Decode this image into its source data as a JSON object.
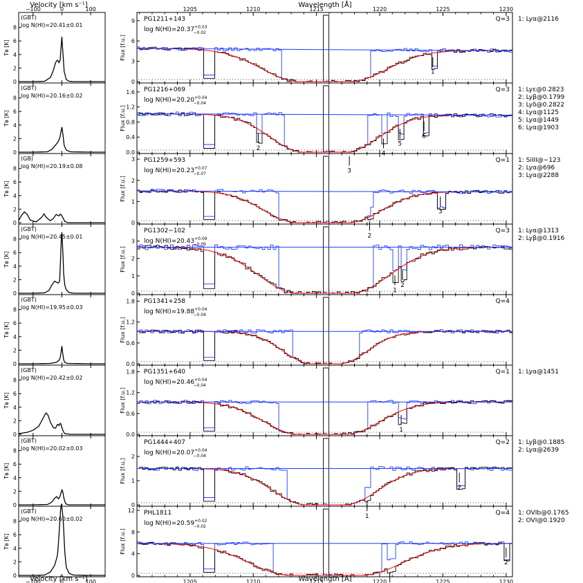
{
  "chart_data": {
    "type": "line",
    "left_column": {
      "xlabel": "Velocity [km s⁻¹]",
      "ylabel": "Tʙ [K]",
      "xlim": [
        -150,
        150
      ],
      "ylim": [
        0,
        10
      ],
      "x_ticks": [
        "−100",
        "0",
        "100"
      ],
      "y_ticks": [
        "0",
        "2",
        "4",
        "6",
        "8"
      ]
    },
    "right_column": {
      "xlabel": "Wavelength [Å]",
      "ylabel": "Flux [f.u.]",
      "xlim": [
        1200.8,
        1230.5
      ],
      "x_ticks": [
        "1205",
        "1210",
        "1215",
        "1220",
        "1225",
        "1230"
      ]
    },
    "rows": [
      {
        "telescope": "(GBT)",
        "nhi_21cm": "log N(HI)=20.41±0.01",
        "hi_profile": {
          "v": [
            -100,
            -60,
            -40,
            -30,
            -22,
            -15,
            -10,
            -6,
            -3,
            0,
            3,
            8,
            15,
            25,
            40,
            100
          ],
          "tb": [
            0,
            0.05,
            0.6,
            1.6,
            2.8,
            3.2,
            2.8,
            3.2,
            5.0,
            6.6,
            4.5,
            1.5,
            0.3,
            0.05,
            0,
            0
          ]
        },
        "target": "PG1211+143",
        "nhi_lya": "log N(HI)=20.37",
        "err_up": "+0.03",
        "err_dn": "−0.02",
        "quality": "Q=3",
        "yticks": [
          {
            "v": 0,
            "label": "0"
          },
          {
            "v": 3,
            "label": "3"
          },
          {
            "v": 6,
            "label": "6"
          },
          {
            "v": 9,
            "label": "9"
          }
        ],
        "ylim": [
          0,
          10
        ],
        "continuum": 4.9,
        "continuum_end": 4.55,
        "trough": [
          1213.7,
          1217.6
        ],
        "damping_scale": 18,
        "marks": [
          {
            "w": 1224.2,
            "label": "1"
          }
        ],
        "lines": [
          "1: Lyα@2116"
        ]
      },
      {
        "telescope": "(GBT)",
        "nhi_21cm": "log N(HI)=20.16±0.02",
        "hi_profile": {
          "v": [
            -100,
            -50,
            -35,
            -25,
            -15,
            -8,
            -3,
            0,
            3,
            8,
            15,
            30,
            100
          ],
          "tb": [
            0,
            0.05,
            0.4,
            0.9,
            1.4,
            2.0,
            3.0,
            3.7,
            2.8,
            1.0,
            0.3,
            0.05,
            0
          ]
        },
        "target": "PG1216+069",
        "nhi_lya": "log N(HI)=20.20",
        "err_up": "+0.04",
        "err_dn": "−0.04",
        "quality": "Q=3",
        "yticks": [
          {
            "v": 0,
            "label": "0.0"
          },
          {
            "v": 0.4,
            "label": "0.4"
          },
          {
            "v": 0.8,
            "label": "0.8"
          },
          {
            "v": 1.2,
            "label": "1.2"
          },
          {
            "v": 1.6,
            "label": "1.6"
          }
        ],
        "ylim": [
          0,
          1.8
        ],
        "continuum": 1.02,
        "continuum_end": 0.98,
        "trough": [
          1214.0,
          1217.3
        ],
        "damping_scale": 14,
        "marks": [
          {
            "w": 1210.4,
            "label": "2"
          },
          {
            "w": 1217.6,
            "label": "3"
          },
          {
            "w": 1220.3,
            "label": "4"
          },
          {
            "w": 1221.6,
            "label": "5"
          },
          {
            "w": 1223.5,
            "label": "6"
          }
        ],
        "lines": [
          "1: Lyε@0.2823",
          "2: Lyβ@0.1799",
          "3: Lyδ@0.2822",
          "4: Lyα@1125",
          "5: Lyα@1449",
          "6: Lyα@1903"
        ]
      },
      {
        "telescope": "(GB)",
        "nhi_21cm": "log N(HI)=20.19±0.08",
        "hi_profile": {
          "v": [
            -150,
            -140,
            -130,
            -120,
            -110,
            -90,
            -70,
            -62,
            -55,
            -40,
            -30,
            -20,
            -10,
            -5,
            0,
            10,
            20,
            100
          ],
          "tb": [
            0.3,
            1.1,
            1.6,
            1.2,
            0.4,
            0.1,
            0.8,
            1.3,
            0.8,
            0.3,
            0.6,
            1.2,
            1.0,
            1.3,
            1.0,
            0.2,
            0,
            0
          ]
        },
        "target": "PG1259+593",
        "nhi_lya": "log N(HI)=20.23",
        "err_up": "+0.07",
        "err_dn": "−0.07",
        "quality": "Q=1",
        "yticks": [
          {
            "v": 0,
            "label": "0"
          },
          {
            "v": 1,
            "label": "1"
          },
          {
            "v": 2,
            "label": "2"
          },
          {
            "v": 3,
            "label": "3"
          }
        ],
        "ylim": [
          0,
          3.2
        ],
        "continuum": 1.5,
        "continuum_end": 1.45,
        "trough": [
          1213.5,
          1217.5
        ],
        "damping_scale": 14,
        "marks": [
          {
            "w": 1219.2,
            "label": "2"
          },
          {
            "w": 1224.8,
            "label": "3"
          }
        ],
        "lines": [
          "1: SiIII@−123",
          "2: Lyα@696",
          "3: Lyα@2288"
        ]
      },
      {
        "telescope": "(GBT)",
        "nhi_21cm": "log N(HI)=20.45±0.01",
        "hi_profile": {
          "v": [
            -100,
            -60,
            -45,
            -35,
            -25,
            -18,
            -12,
            -8,
            -5,
            -2,
            0,
            3,
            6,
            10,
            15,
            25,
            40,
            100
          ],
          "tb": [
            0,
            0.05,
            0.4,
            1.2,
            1.8,
            1.6,
            1.5,
            1.8,
            4.5,
            8.0,
            9.0,
            6.5,
            3.0,
            1.2,
            0.5,
            0.1,
            0,
            0
          ]
        },
        "target": "PG1302−102",
        "nhi_lya": "log N(HI)=20.43",
        "err_up": "+0.09",
        "err_dn": "−0.09",
        "quality": "Q=3",
        "yticks": [
          {
            "v": 0,
            "label": "0"
          },
          {
            "v": 1,
            "label": "1"
          },
          {
            "v": 2,
            "label": "2"
          },
          {
            "v": 3,
            "label": "3"
          }
        ],
        "ylim": [
          0,
          3.9
        ],
        "continuum": 2.65,
        "continuum_end": 2.65,
        "trough": [
          1213.5,
          1217.7
        ],
        "damping_scale": 19,
        "marks": [
          {
            "w": 1221.2,
            "label": "1"
          },
          {
            "w": 1221.8,
            "label": "2"
          }
        ],
        "lines": [
          "1: Lyα@1313",
          "2: Lyβ@0.1916"
        ]
      },
      {
        "telescope": "(GBT)",
        "nhi_21cm": "log N(HI)=19.95±0.03",
        "hi_profile": {
          "v": [
            -100,
            -40,
            -20,
            -10,
            -5,
            -2,
            0,
            3,
            6,
            10,
            20,
            100
          ],
          "tb": [
            0,
            0.05,
            0.2,
            0.5,
            1.0,
            2.0,
            2.6,
            1.5,
            0.6,
            0.2,
            0.05,
            0
          ]
        },
        "target": "PG1341+258",
        "nhi_lya": "log N(HI)=19.88",
        "err_up": "+0.04",
        "err_dn": "−0.04",
        "quality": "Q=4",
        "yticks": [
          {
            "v": 0,
            "label": "0.0"
          },
          {
            "v": 0.6,
            "label": "0.6"
          },
          {
            "v": 1.2,
            "label": "1.2"
          },
          {
            "v": 1.8,
            "label": "1.8"
          }
        ],
        "ylim": [
          0,
          1.95
        ],
        "continuum": 0.93,
        "continuum_end": 0.93,
        "trough": [
          1214.6,
          1216.8
        ],
        "damping_scale": 10,
        "marks": [],
        "lines": []
      },
      {
        "telescope": "(GBT)",
        "nhi_21cm": "log N(HI)=20.42±0.02",
        "hi_profile": {
          "v": [
            -150,
            -120,
            -100,
            -80,
            -65,
            -55,
            -48,
            -40,
            -30,
            -22,
            -15,
            -10,
            -5,
            0,
            5,
            10,
            20,
            30,
            100
          ],
          "tb": [
            0.1,
            0.3,
            0.6,
            1.2,
            2.4,
            3.2,
            2.8,
            1.8,
            1.0,
            0.9,
            1.5,
            1.3,
            1.7,
            1.0,
            0.4,
            0.1,
            0.05,
            0,
            0
          ]
        },
        "target": "PG1351+640",
        "nhi_lya": "log N(HI)=20.46",
        "err_up": "+0.04",
        "err_dn": "−0.04",
        "quality": "Q=1",
        "yticks": [
          {
            "v": 0,
            "label": "0.0"
          },
          {
            "v": 0.6,
            "label": "0.6"
          },
          {
            "v": 1.2,
            "label": "1.2"
          },
          {
            "v": 1.8,
            "label": "1.8"
          }
        ],
        "ylim": [
          0,
          1.95
        ],
        "continuum": 0.93,
        "continuum_end": 0.93,
        "trough": [
          1213.6,
          1217.3
        ],
        "damping_scale": 15,
        "marks": [
          {
            "w": 1221.7,
            "label": "1"
          }
        ],
        "lines": [
          "1: Lyα@1451"
        ]
      },
      {
        "telescope": "(GBT)",
        "nhi_21cm": "log N(HI)=20.02±0.03",
        "hi_profile": {
          "v": [
            -100,
            -50,
            -35,
            -25,
            -18,
            -12,
            -8,
            -4,
            0,
            3,
            6,
            10,
            15,
            25,
            100
          ],
          "tb": [
            0,
            0.05,
            0.4,
            1.0,
            1.2,
            0.9,
            1.1,
            1.6,
            2.2,
            2.0,
            1.2,
            0.5,
            0.1,
            0,
            0
          ]
        },
        "target": "PG1444+407",
        "nhi_lya": "log N(HI)=20.07",
        "err_up": "+0.04",
        "err_dn": "−0.04",
        "quality": "Q=2",
        "yticks": [
          {
            "v": 0,
            "label": "0"
          },
          {
            "v": 1,
            "label": "1"
          },
          {
            "v": 2,
            "label": "2"
          }
        ],
        "ylim": [
          0,
          2.8
        ],
        "continuum": 1.5,
        "continuum_end": 1.5,
        "trough": [
          1214.2,
          1217.2
        ],
        "damping_scale": 14,
        "marks": [
          {
            "w": 1219.0,
            "label": "1"
          },
          {
            "w": 1226.3,
            "label": "2"
          }
        ],
        "lines": [
          "1: Lyβ@0.1885",
          "2: Lyα@2639"
        ]
      },
      {
        "telescope": "(GBT)",
        "nhi_21cm": "log N(HI)=20.60±0.02",
        "hi_profile": {
          "v": [
            -100,
            -60,
            -40,
            -25,
            -15,
            -10,
            -5,
            -2,
            0,
            3,
            6,
            10,
            15,
            25,
            40,
            100
          ],
          "tb": [
            0,
            0.05,
            0.5,
            1.5,
            3.0,
            6.0,
            9.5,
            10.5,
            10.0,
            9.0,
            7.0,
            3.5,
            1.2,
            0.3,
            0.05,
            0
          ]
        },
        "target": "PHL1811",
        "nhi_lya": "log N(HI)=20.59",
        "err_up": "+0.02",
        "err_dn": "−0.02",
        "quality": "Q=4",
        "yticks": [
          {
            "v": 0,
            "label": "0"
          },
          {
            "v": 4,
            "label": "4"
          },
          {
            "v": 8,
            "label": "8"
          },
          {
            "v": 12,
            "label": "12"
          }
        ],
        "ylim": [
          0,
          12.5
        ],
        "continuum": 5.9,
        "continuum_end": 5.9,
        "trough": [
          1213.0,
          1218.5
        ],
        "damping_scale": 22,
        "marks": [
          {
            "w": 1220.8,
            "label": "1"
          },
          {
            "w": 1230.0,
            "label": "2"
          }
        ],
        "lines": [
          "1: OVIb@0.1765",
          "2: OVI@0.1920"
        ]
      }
    ]
  }
}
